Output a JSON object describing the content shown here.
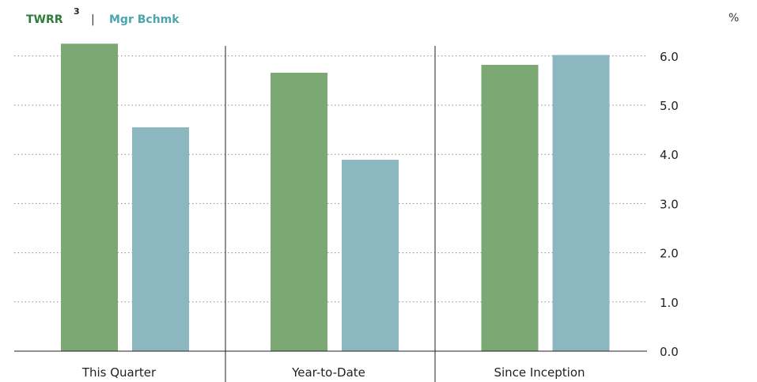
{
  "legend": {
    "twrr_label": "TWRR",
    "twrr_footnote": "3",
    "separator": "|",
    "bchmk_label": "Mgr Bchmk"
  },
  "unit_label": "%",
  "colors": {
    "twrr": "#7ca874",
    "bchmk": "#8db7c0",
    "twrr_legend_text": "#2e7d3a",
    "bchmk_legend_text": "#4aa5ae",
    "grid": "#8a8a8a",
    "axis": "#222222",
    "text": "#222222"
  },
  "chart_data": {
    "type": "bar",
    "categories": [
      "This Quarter",
      "Year-to-Date",
      "Since Inception"
    ],
    "series": [
      {
        "name": "TWRR",
        "values": [
          6.25,
          5.66,
          5.82
        ]
      },
      {
        "name": "Mgr Bchmk",
        "values": [
          4.55,
          3.89,
          6.02
        ]
      }
    ],
    "yticks": [
      "0.0",
      "1.0",
      "2.0",
      "3.0",
      "4.0",
      "5.0",
      "6.0"
    ],
    "ylim": [
      0,
      6.25
    ],
    "ylabel": "%",
    "grid": true,
    "legend_position": "top-left"
  }
}
